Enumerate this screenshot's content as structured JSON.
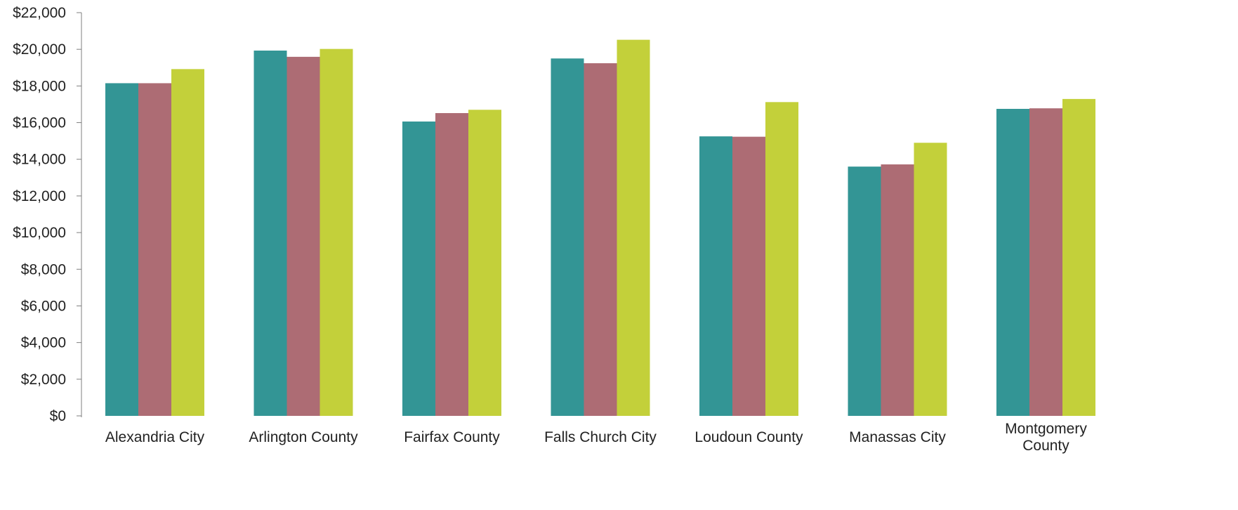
{
  "chart_data": {
    "type": "bar",
    "title": "",
    "xlabel": "",
    "ylabel": "",
    "ylim": [
      0,
      22000
    ],
    "y_ticks": [
      0,
      2000,
      4000,
      6000,
      8000,
      10000,
      12000,
      14000,
      16000,
      18000,
      20000,
      22000
    ],
    "y_tick_labels": [
      "$0",
      "$2,000",
      "$4,000",
      "$6,000",
      "$8,000",
      "$10,000",
      "$12,000",
      "$14,000",
      "$16,000",
      "$18,000",
      "$20,000",
      "$22,000"
    ],
    "grid": false,
    "legend": "none",
    "categories": [
      [
        "Alexandria City"
      ],
      [
        "Arlington County"
      ],
      [
        "Fairfax County"
      ],
      [
        "Falls Church City"
      ],
      [
        "Loudoun County"
      ],
      [
        "Manassas City"
      ],
      [
        "Montgomery",
        "County"
      ]
    ],
    "series": [
      {
        "color": "#339595",
        "values": [
          18150,
          19930,
          16060,
          19500,
          15250,
          13600,
          16750
        ]
      },
      {
        "color": "#ad6c74",
        "values": [
          18150,
          19590,
          16520,
          19240,
          15230,
          13720,
          16780
        ]
      },
      {
        "color": "#c3d03a",
        "values": [
          18920,
          20020,
          16700,
          20520,
          17120,
          14900,
          17290
        ]
      }
    ]
  }
}
